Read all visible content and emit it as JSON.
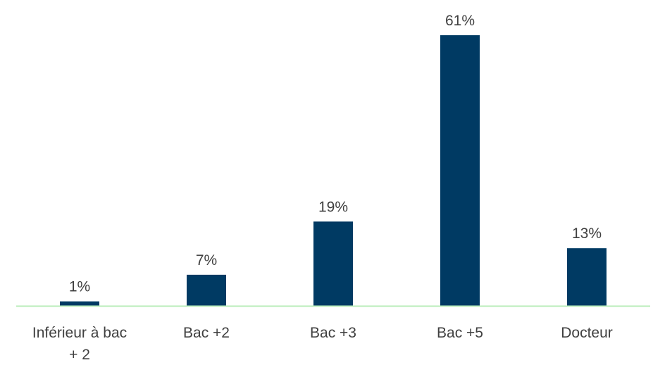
{
  "chart_data": {
    "type": "bar",
    "title": "",
    "xlabel": "",
    "ylabel": "",
    "categories": [
      "Inférieur à bac + 2",
      "Bac +2",
      "Bac +3",
      "Bac +5",
      "Docteur"
    ],
    "category_label_lines": [
      [
        "Inférieur à bac",
        "+ 2"
      ],
      [
        "Bac +2"
      ],
      [
        "Bac +3"
      ],
      [
        "Bac +5"
      ],
      [
        "Docteur"
      ]
    ],
    "values": [
      1,
      7,
      19,
      61,
      13
    ],
    "data_labels": [
      "1%",
      "7%",
      "19%",
      "61%",
      "13%"
    ],
    "unit": "%",
    "ylim": [
      0,
      61
    ],
    "grid": false,
    "legend": "none",
    "colors": {
      "bar": "#003a63",
      "baseline": "#b8ecb8",
      "text": "#404040"
    }
  }
}
